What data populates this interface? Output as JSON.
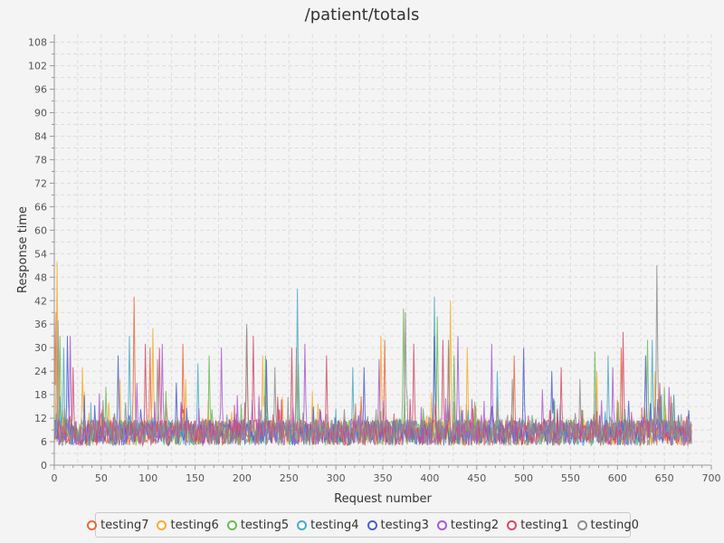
{
  "chart_data": {
    "type": "line",
    "title": "/patient/totals",
    "xlabel": "Request number",
    "ylabel": "Response time",
    "xlim": [
      0,
      700
    ],
    "ylim": [
      0,
      110
    ],
    "x_ticks": [
      0,
      50,
      100,
      150,
      200,
      250,
      300,
      350,
      400,
      450,
      500,
      550,
      600,
      650,
      700
    ],
    "y_ticks": [
      0,
      6,
      12,
      18,
      24,
      30,
      36,
      42,
      48,
      54,
      60,
      66,
      72,
      78,
      84,
      90,
      96,
      102,
      108
    ],
    "grid": true,
    "legend_position": "bottom",
    "baseline_range": [
      5,
      14
    ],
    "n_points": 680,
    "series": [
      {
        "name": "testing7",
        "color": "#e8683f",
        "peaks": [
          [
            0,
            40
          ],
          [
            2,
            39
          ],
          [
            85,
            43
          ],
          [
            102,
            30
          ],
          [
            137,
            31
          ],
          [
            205,
            35
          ],
          [
            258,
            30
          ],
          [
            352,
            32
          ],
          [
            420,
            30
          ],
          [
            490,
            28
          ],
          [
            604,
            30
          ],
          [
            660,
            18
          ]
        ]
      },
      {
        "name": "testing6",
        "color": "#f5ad2e",
        "peaks": [
          [
            3,
            52
          ],
          [
            30,
            25
          ],
          [
            70,
            22
          ],
          [
            105,
            35
          ],
          [
            140,
            22
          ],
          [
            222,
            28
          ],
          [
            348,
            33
          ],
          [
            422,
            42
          ],
          [
            440,
            30
          ],
          [
            578,
            24
          ],
          [
            640,
            24
          ]
        ]
      },
      {
        "name": "testing5",
        "color": "#6cba56",
        "peaks": [
          [
            6,
            33
          ],
          [
            55,
            20
          ],
          [
            165,
            28
          ],
          [
            225,
            28
          ],
          [
            260,
            26
          ],
          [
            372,
            40
          ],
          [
            408,
            38
          ],
          [
            426,
            28
          ],
          [
            576,
            29
          ],
          [
            632,
            32
          ],
          [
            650,
            20
          ]
        ]
      },
      {
        "name": "testing4",
        "color": "#4aaac8",
        "peaks": [
          [
            10,
            30
          ],
          [
            80,
            33
          ],
          [
            153,
            26
          ],
          [
            259,
            45
          ],
          [
            318,
            25
          ],
          [
            405,
            43
          ],
          [
            472,
            24
          ],
          [
            590,
            28
          ],
          [
            637,
            32
          ],
          [
            660,
            18
          ]
        ]
      },
      {
        "name": "testing3",
        "color": "#4d5fc4",
        "peaks": [
          [
            14,
            33
          ],
          [
            68,
            28
          ],
          [
            130,
            21
          ],
          [
            226,
            27
          ],
          [
            330,
            25
          ],
          [
            405,
            33
          ],
          [
            500,
            30
          ],
          [
            530,
            24
          ],
          [
            630,
            28
          ],
          [
            676,
            14
          ]
        ]
      },
      {
        "name": "testing2",
        "color": "#a95bd0",
        "peaks": [
          [
            17,
            33
          ],
          [
            88,
            21
          ],
          [
            115,
            31
          ],
          [
            178,
            30
          ],
          [
            267,
            31
          ],
          [
            346,
            27
          ],
          [
            430,
            33
          ],
          [
            466,
            31
          ],
          [
            595,
            25
          ],
          [
            655,
            20
          ]
        ]
      },
      {
        "name": "testing1",
        "color": "#d14b6a",
        "peaks": [
          [
            20,
            25
          ],
          [
            97,
            31
          ],
          [
            112,
            30
          ],
          [
            212,
            33
          ],
          [
            253,
            30
          ],
          [
            290,
            28
          ],
          [
            383,
            31
          ],
          [
            414,
            32
          ],
          [
            540,
            25
          ],
          [
            606,
            34
          ],
          [
            645,
            21
          ]
        ]
      },
      {
        "name": "testing0",
        "color": "#8e8e8e",
        "peaks": [
          [
            4,
            37
          ],
          [
            76,
            16
          ],
          [
            110,
            27
          ],
          [
            205,
            36
          ],
          [
            235,
            25
          ],
          [
            374,
            39
          ],
          [
            420,
            32
          ],
          [
            488,
            22
          ],
          [
            560,
            22
          ],
          [
            642,
            51
          ],
          [
            668,
            13
          ]
        ]
      }
    ]
  }
}
